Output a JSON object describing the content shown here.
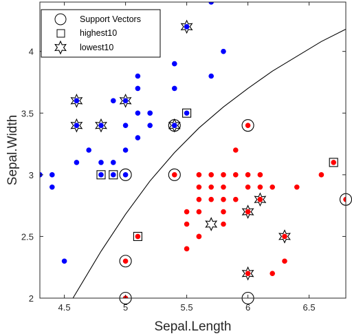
{
  "chart_data": {
    "type": "scatter",
    "title": "",
    "xlabel": "Sepal.Length",
    "ylabel": "Sepal.Width",
    "xlim": [
      4.3,
      6.8
    ],
    "ylim": [
      2.0,
      4.4
    ],
    "xticks": [
      4.5,
      5,
      5.5,
      6,
      6.5
    ],
    "yticks": [
      2,
      2.5,
      3,
      3.5,
      4
    ],
    "xtick_labels": [
      "4.5",
      "5",
      "5.5",
      "6",
      "6.5"
    ],
    "ytick_labels": [
      "2",
      "2.5",
      "3",
      "3.5",
      "4"
    ],
    "grid": false,
    "legend_position": "top-left",
    "colors": {
      "class_a": "#0000ff",
      "class_b": "#ff0000",
      "boundary": "#000000"
    },
    "series": [
      {
        "color": "#0000ff",
        "x": [
          5.7,
          5.5,
          5.8,
          5.4,
          5.1,
          5.7,
          5.4,
          5.1,
          5.2,
          4.6,
          4.6,
          4.8,
          4.9,
          5.0,
          5.1,
          5.2,
          5.4,
          5.0,
          5.1,
          5.2,
          5.4,
          4.7,
          5.0,
          4.6,
          4.8,
          4.9,
          4.4,
          4.3,
          4.4,
          4.5,
          4.8,
          4.9,
          5.0,
          5.5
        ],
        "y": [
          4.4,
          4.2,
          4.0,
          3.9,
          3.8,
          3.8,
          3.7,
          3.7,
          3.5,
          3.6,
          3.4,
          3.4,
          3.6,
          3.4,
          3.5,
          3.4,
          3.4,
          3.6,
          3.3,
          3.5,
          3.4,
          3.2,
          3.2,
          3.1,
          3.1,
          3.1,
          3.0,
          3.0,
          2.9,
          2.3,
          3.0,
          3.0,
          3.0,
          3.5
        ]
      },
      {
        "color": "#ff0000",
        "x": [
          6.0,
          5.9,
          5.6,
          5.7,
          5.8,
          5.9,
          6.0,
          6.1,
          5.6,
          5.7,
          5.8,
          6.0,
          6.1,
          6.2,
          6.4,
          6.6,
          6.7,
          6.8,
          5.6,
          5.8,
          5.9,
          6.0,
          6.1,
          5.5,
          5.6,
          5.7,
          5.8,
          6.0,
          6.1,
          6.3,
          5.5,
          5.6,
          5.8,
          6.2,
          6.3,
          6.0,
          5.6,
          5.5,
          5.4,
          5.0,
          5.0,
          5.1
        ],
        "y": [
          3.4,
          3.2,
          3.0,
          3.0,
          3.0,
          3.0,
          3.0,
          3.0,
          2.9,
          2.9,
          2.9,
          2.9,
          2.9,
          2.9,
          2.9,
          3.0,
          3.1,
          2.8,
          2.8,
          2.8,
          2.8,
          2.7,
          2.8,
          2.7,
          2.7,
          2.8,
          2.7,
          2.7,
          2.8,
          2.5,
          2.6,
          2.5,
          2.6,
          2.2,
          2.3,
          2.2,
          2.5,
          2.4,
          3.0,
          2.3,
          2.0,
          2.5
        ]
      }
    ],
    "support_vectors": {
      "x": [
        5.0,
        5.4,
        5.4,
        6.0,
        5.0,
        6.0,
        6.8,
        5.0
      ],
      "y": [
        3.0,
        3.4,
        3.0,
        3.4,
        2.3,
        2.0,
        2.8,
        2.0
      ]
    },
    "highest10": {
      "x": [
        4.8,
        4.9,
        5.5,
        5.1,
        6.7
      ],
      "y": [
        3.0,
        3.0,
        3.5,
        2.5,
        3.1
      ]
    },
    "lowest10": {
      "x": [
        5.5,
        4.6,
        5.0,
        4.6,
        4.8,
        5.4,
        6.1,
        6.0,
        5.7,
        6.3,
        6.0
      ],
      "y": [
        4.2,
        3.6,
        3.6,
        3.4,
        3.4,
        3.4,
        2.8,
        2.7,
        2.6,
        2.5,
        2.2
      ]
    },
    "decision_boundary": {
      "x": [
        4.57,
        4.8,
        5.0,
        5.2,
        5.4,
        5.6,
        5.8,
        6.0,
        6.2,
        6.4,
        6.6,
        6.8
      ],
      "y": [
        2.0,
        2.38,
        2.68,
        2.95,
        3.18,
        3.38,
        3.55,
        3.7,
        3.84,
        3.96,
        4.08,
        4.18
      ]
    },
    "legend": {
      "support_vectors": "Support Vectors",
      "highest10": "highest10",
      "lowest10": "lowest10"
    }
  }
}
